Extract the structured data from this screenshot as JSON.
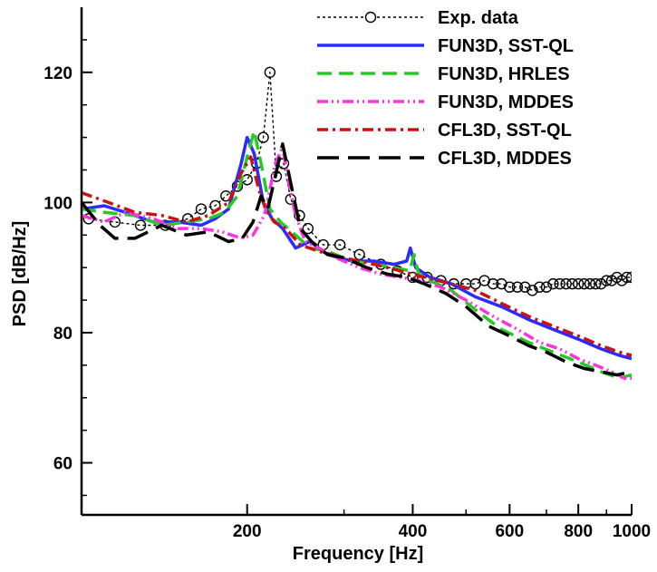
{
  "chart_data": {
    "type": "line",
    "xlabel": "Frequency [Hz]",
    "ylabel": "PSD [dB/Hz]",
    "x_scale": "log",
    "xlim": [
      100,
      1000
    ],
    "ylim": [
      52,
      130
    ],
    "x_ticks": [
      {
        "value": 200,
        "label": "200"
      },
      {
        "value": 400,
        "label": "400"
      },
      {
        "value": 600,
        "label": "600"
      },
      {
        "value": 800,
        "label": "800"
      },
      {
        "value": 1000,
        "label": "1000"
      }
    ],
    "y_ticks": [
      {
        "value": 60,
        "label": "60"
      },
      {
        "value": 80,
        "label": "80"
      },
      {
        "value": 100,
        "label": "100"
      },
      {
        "value": 120,
        "label": "120"
      }
    ],
    "grid": false,
    "legend_position": "top-right",
    "series": [
      {
        "name": "Exp. data",
        "color": "#000000",
        "style": "dotted-circle",
        "x": [
          103,
          115,
          128,
          142,
          156,
          165,
          175,
          183,
          192,
          200,
          208,
          214,
          220,
          226,
          233,
          240,
          249,
          258,
          275,
          295,
          320,
          350,
          375,
          400,
          425,
          450,
          475,
          500,
          520,
          540,
          560,
          580,
          600,
          620,
          640,
          660,
          680,
          700,
          720,
          740,
          760,
          780,
          800,
          820,
          840,
          860,
          880,
          900,
          920,
          940,
          960,
          980,
          1000
        ],
        "y": [
          97.5,
          97,
          96.5,
          96.5,
          97.5,
          99,
          99.5,
          101,
          102.5,
          103.5,
          106,
          110,
          120,
          104,
          106,
          100.5,
          98,
          96,
          93.5,
          93.5,
          92,
          90.5,
          89.5,
          88.5,
          88.5,
          88,
          87.5,
          87.5,
          87.5,
          88,
          87.5,
          87.5,
          87,
          87,
          87,
          86.5,
          87,
          87,
          87.5,
          87.5,
          87.5,
          87.5,
          87.5,
          87.5,
          87.5,
          87.5,
          87.5,
          88,
          88,
          88.5,
          88,
          88.5,
          88.5
        ]
      },
      {
        "name": "FUN3D, SST-QL",
        "color": "#2b2bff",
        "style": "solid",
        "x": [
          100,
          110,
          120,
          135,
          150,
          165,
          175,
          185,
          195,
          200,
          206,
          214,
          222,
          232,
          245,
          260,
          280,
          310,
          340,
          370,
          390,
          396,
          405,
          430,
          470,
          520,
          580,
          650,
          720,
          800,
          880,
          950,
          1000
        ],
        "y": [
          99,
          99.5,
          98.5,
          97,
          97,
          96.5,
          97.5,
          99,
          106,
          110,
          107.5,
          100,
          97.5,
          96,
          93,
          94,
          92,
          91,
          91,
          90.5,
          91,
          93,
          90,
          88.5,
          87.5,
          85.5,
          84,
          82,
          80.5,
          79,
          77.5,
          76.5,
          76
        ]
      },
      {
        "name": "FUN3D, HRLES",
        "color": "#22cc22",
        "style": "dashed",
        "x": [
          100,
          110,
          125,
          140,
          155,
          170,
          182,
          192,
          200,
          206,
          212,
          220,
          230,
          245,
          260,
          280,
          310,
          340,
          370,
          395,
          402,
          410,
          430,
          470,
          520,
          580,
          650,
          720,
          800,
          880,
          950,
          1000
        ],
        "y": [
          99,
          98.5,
          98,
          96.5,
          97,
          97.5,
          98.5,
          101,
          107,
          111,
          106,
          99,
          97,
          95,
          93,
          92.5,
          91,
          90.5,
          90,
          89.5,
          92,
          89,
          88,
          86.5,
          83.5,
          80.5,
          78.5,
          77,
          75.5,
          74,
          73,
          73.5
        ]
      },
      {
        "name": "FUN3D, MDDES",
        "color": "#ff33dd",
        "style": "dash-dot-dot",
        "x": [
          100,
          110,
          120,
          135,
          150,
          165,
          180,
          195,
          205,
          215,
          225,
          232,
          238,
          245,
          255,
          270,
          290,
          320,
          350,
          380,
          410,
          450,
          500,
          560,
          620,
          680,
          740,
          800,
          860,
          920,
          970,
          1000
        ],
        "y": [
          98,
          97,
          98.5,
          97.5,
          96,
          96,
          95.5,
          94.5,
          95,
          98,
          106,
          108.5,
          103,
          98,
          94,
          93,
          91.5,
          90,
          89,
          88.5,
          88,
          87,
          85,
          82.5,
          80.5,
          78.5,
          77.5,
          76,
          75,
          74,
          73,
          73
        ]
      },
      {
        "name": "CFL3D, SST-QL",
        "color": "#cc1111",
        "style": "dash-dot",
        "x": [
          100,
          112,
          125,
          140,
          155,
          170,
          185,
          195,
          203,
          210,
          216,
          224,
          235,
          250,
          270,
          300,
          340,
          380,
          420,
          470,
          520,
          580,
          650,
          720,
          800,
          880,
          950,
          1000
        ],
        "y": [
          101.5,
          100,
          98.5,
          98,
          97,
          98,
          100,
          104.5,
          107,
          102,
          99,
          97,
          96,
          93.5,
          92.5,
          91.5,
          90.5,
          89.5,
          88.5,
          87.5,
          86.5,
          84.5,
          82.5,
          81,
          79.5,
          78,
          77,
          76.5
        ]
      },
      {
        "name": "CFL3D, MDDES",
        "color": "#000000",
        "style": "long-dash",
        "x": [
          100,
          108,
          115,
          125,
          140,
          155,
          170,
          185,
          196,
          205,
          212,
          218,
          225,
          232,
          240,
          250,
          262,
          280,
          300,
          330,
          360,
          390,
          420,
          460,
          500,
          550,
          600,
          650,
          700,
          760,
          820,
          880,
          940,
          1000
        ],
        "y": [
          100,
          96.5,
          94.5,
          94.5,
          96.5,
          95,
          95.5,
          94,
          94.5,
          97,
          101,
          99,
          104,
          109,
          103,
          96,
          94,
          92,
          91.5,
          90,
          89,
          88.5,
          87.5,
          86,
          84,
          81,
          79.5,
          78,
          77,
          75.5,
          74.5,
          74,
          73.5,
          74
        ]
      }
    ]
  }
}
